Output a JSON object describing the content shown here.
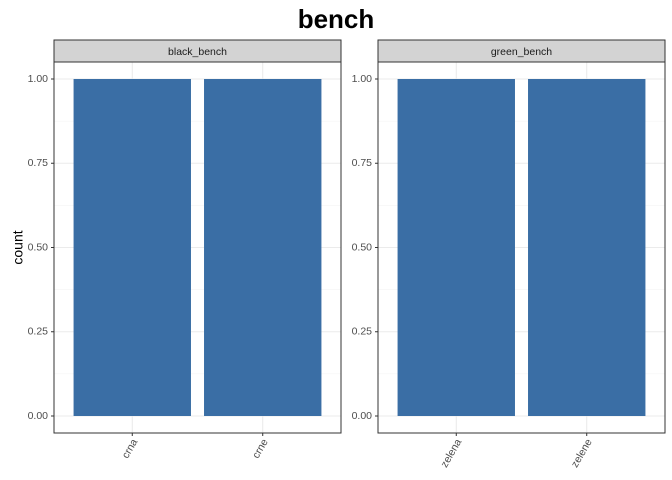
{
  "chart_data": {
    "type": "bar",
    "title": "bench",
    "ylabel": "count",
    "xlabel": "",
    "ylim": [
      0,
      1
    ],
    "yticks": [
      "0.00",
      "0.25",
      "0.50",
      "0.75",
      "1.00"
    ],
    "bar_color": "#3A6EA5",
    "strip_color": "#D3D3D3",
    "grid": true,
    "facets": [
      {
        "label": "black_bench",
        "categories": [
          "crna",
          "crne"
        ],
        "values": [
          1,
          1
        ]
      },
      {
        "label": "green_bench",
        "categories": [
          "zelena",
          "zelene"
        ],
        "values": [
          1,
          1
        ]
      }
    ]
  }
}
